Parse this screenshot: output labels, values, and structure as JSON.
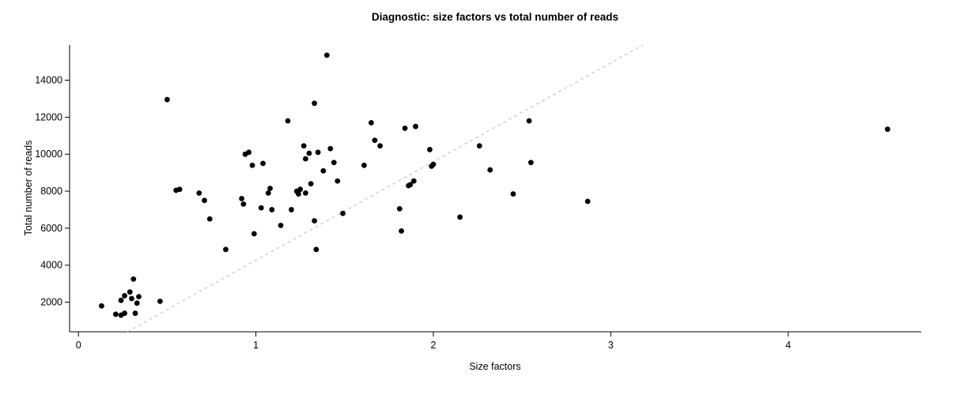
{
  "chart_data": {
    "type": "scatter",
    "title": "Diagnostic: size factors vs total number of reads",
    "xlabel": "Size factors",
    "ylabel": "Total number of reads",
    "xlim": [
      -0.05,
      4.75
    ],
    "ylim": [
      400,
      15900
    ],
    "x_ticks": [
      0,
      1,
      2,
      3,
      4
    ],
    "y_ticks": [
      2000,
      4000,
      6000,
      8000,
      10000,
      12000,
      14000
    ],
    "grid": false,
    "legend": null,
    "point_color": "#000000",
    "axis_color": "#000000",
    "reference_line": {
      "slope": 5333,
      "intercept": -1067,
      "color": "#c8c8c8",
      "style": "dashed"
    },
    "points": [
      [
        0.13,
        1800
      ],
      [
        0.21,
        1350
      ],
      [
        0.24,
        1300
      ],
      [
        0.26,
        1400
      ],
      [
        0.24,
        2100
      ],
      [
        0.26,
        2350
      ],
      [
        0.29,
        2550
      ],
      [
        0.3,
        2200
      ],
      [
        0.31,
        3250
      ],
      [
        0.32,
        1400
      ],
      [
        0.33,
        1950
      ],
      [
        0.34,
        2300
      ],
      [
        0.46,
        2050
      ],
      [
        0.5,
        12950
      ],
      [
        0.55,
        8050
      ],
      [
        0.57,
        8100
      ],
      [
        0.68,
        7900
      ],
      [
        0.71,
        7500
      ],
      [
        0.74,
        6500
      ],
      [
        0.83,
        4850
      ],
      [
        0.92,
        7600
      ],
      [
        0.93,
        7300
      ],
      [
        0.94,
        10000
      ],
      [
        0.96,
        10100
      ],
      [
        0.98,
        9400
      ],
      [
        0.99,
        5700
      ],
      [
        1.03,
        7100
      ],
      [
        1.04,
        9500
      ],
      [
        1.07,
        7900
      ],
      [
        1.08,
        8150
      ],
      [
        1.09,
        7000
      ],
      [
        1.14,
        6150
      ],
      [
        1.18,
        11800
      ],
      [
        1.2,
        7000
      ],
      [
        1.23,
        8000
      ],
      [
        1.24,
        7850
      ],
      [
        1.25,
        8100
      ],
      [
        1.27,
        10450
      ],
      [
        1.28,
        9750
      ],
      [
        1.28,
        7900
      ],
      [
        1.3,
        10050
      ],
      [
        1.31,
        8400
      ],
      [
        1.33,
        12750
      ],
      [
        1.33,
        6400
      ],
      [
        1.34,
        4850
      ],
      [
        1.35,
        10100
      ],
      [
        1.38,
        9100
      ],
      [
        1.4,
        15350
      ],
      [
        1.42,
        10300
      ],
      [
        1.44,
        9550
      ],
      [
        1.46,
        8550
      ],
      [
        1.49,
        6800
      ],
      [
        1.61,
        9400
      ],
      [
        1.65,
        11700
      ],
      [
        1.67,
        10750
      ],
      [
        1.7,
        10450
      ],
      [
        1.81,
        7050
      ],
      [
        1.82,
        5850
      ],
      [
        1.84,
        11400
      ],
      [
        1.86,
        8300
      ],
      [
        1.87,
        8350
      ],
      [
        1.89,
        8550
      ],
      [
        1.9,
        11500
      ],
      [
        1.98,
        10250
      ],
      [
        1.99,
        9350
      ],
      [
        2.0,
        9450
      ],
      [
        2.15,
        6600
      ],
      [
        2.26,
        10450
      ],
      [
        2.32,
        9150
      ],
      [
        2.45,
        7850
      ],
      [
        2.54,
        11800
      ],
      [
        2.55,
        9550
      ],
      [
        2.87,
        7450
      ],
      [
        4.56,
        11350
      ]
    ]
  }
}
